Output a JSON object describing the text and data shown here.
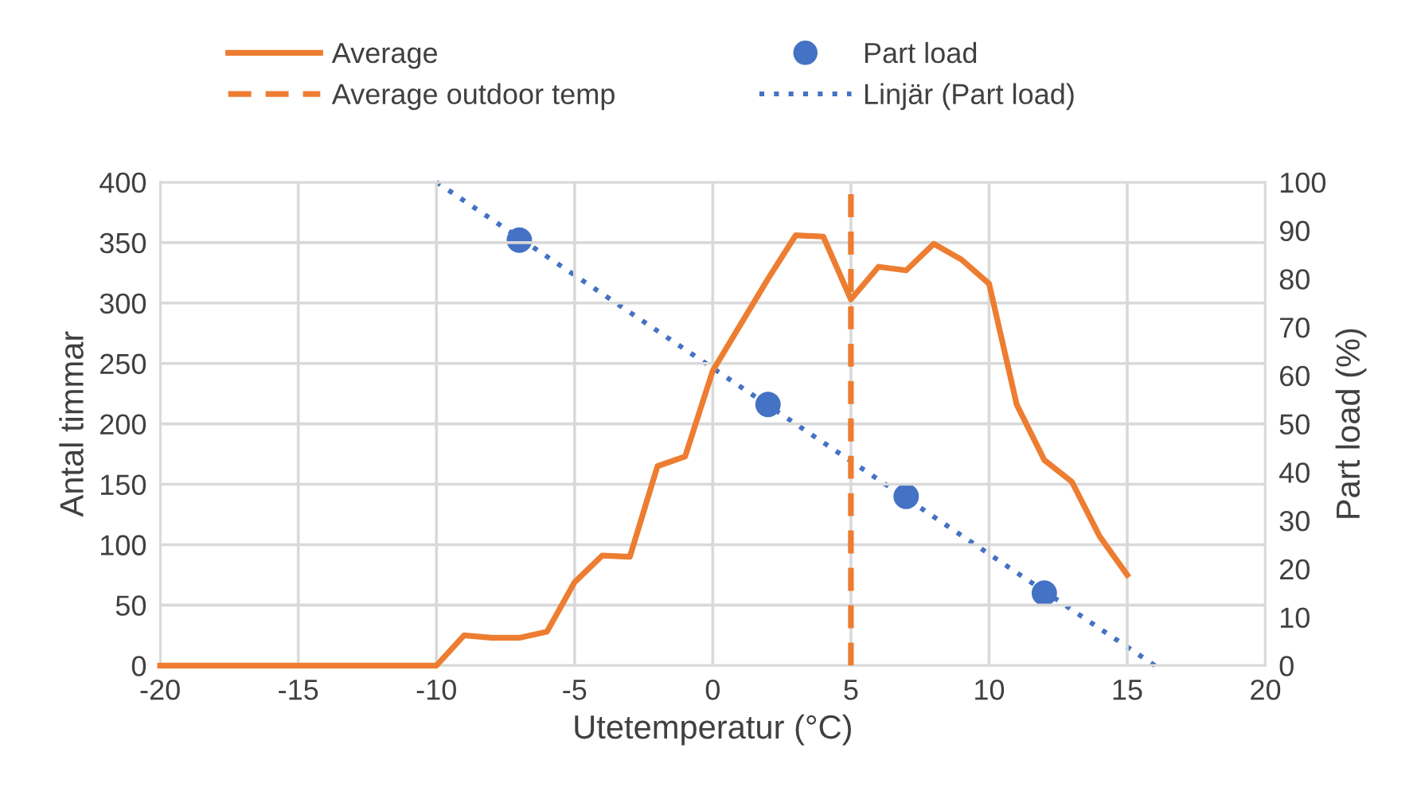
{
  "chart_data": {
    "type": "line",
    "xlabel": "Utetemperatur (°C)",
    "ylabel": "Antal timmar",
    "y2label": "Part load (%)",
    "series": [
      {
        "name": "Average",
        "color": "#ed7d31",
        "line_style": "solid",
        "marker": "none",
        "x": [
          -20,
          -19,
          -18,
          -17,
          -16,
          -15,
          -14,
          -13,
          -12,
          -11,
          -10,
          -9,
          -8,
          -7,
          -6,
          -5,
          -4,
          -3,
          -2,
          -1,
          0,
          1,
          2,
          3,
          4,
          5,
          6,
          7,
          8,
          9,
          10,
          11,
          12,
          13,
          14,
          15
        ],
        "values": [
          0,
          0,
          0,
          0,
          0,
          0,
          0,
          0,
          0,
          0,
          0,
          25,
          23,
          23,
          28,
          69,
          91,
          90,
          165,
          173,
          244,
          282,
          320,
          356,
          355,
          303,
          330,
          327,
          349,
          336,
          316,
          216,
          170,
          152,
          107,
          75
        ]
      },
      {
        "name": "Part load",
        "type": "scatter",
        "axis": "y2",
        "color": "#4472c4",
        "marker": "circle",
        "x": [
          -7,
          2,
          7,
          12
        ],
        "values": [
          88,
          54,
          35,
          15
        ]
      },
      {
        "name": "Linjär (Part load)",
        "axis": "y2",
        "color": "#4472c4",
        "line_style": "dotted",
        "marker": "none",
        "x": [
          -10,
          16
        ],
        "values": [
          100,
          0
        ]
      }
    ],
    "ref_lines": [
      {
        "axis": "x",
        "value": 5,
        "label": "Average outdoor temp",
        "color": "#ed7d31",
        "line_style": "dashed"
      }
    ],
    "xlim": [
      -20,
      20
    ],
    "xticks": [
      -20,
      -15,
      -10,
      -5,
      0,
      5,
      10,
      15,
      20
    ],
    "ylim": [
      0,
      400
    ],
    "yticks": [
      0,
      50,
      100,
      150,
      200,
      250,
      300,
      350,
      400
    ],
    "y2lim": [
      0,
      100
    ],
    "y2ticks": [
      0,
      10,
      20,
      30,
      40,
      50,
      60,
      70,
      80,
      90,
      100
    ],
    "grid": true,
    "legend": "top"
  }
}
